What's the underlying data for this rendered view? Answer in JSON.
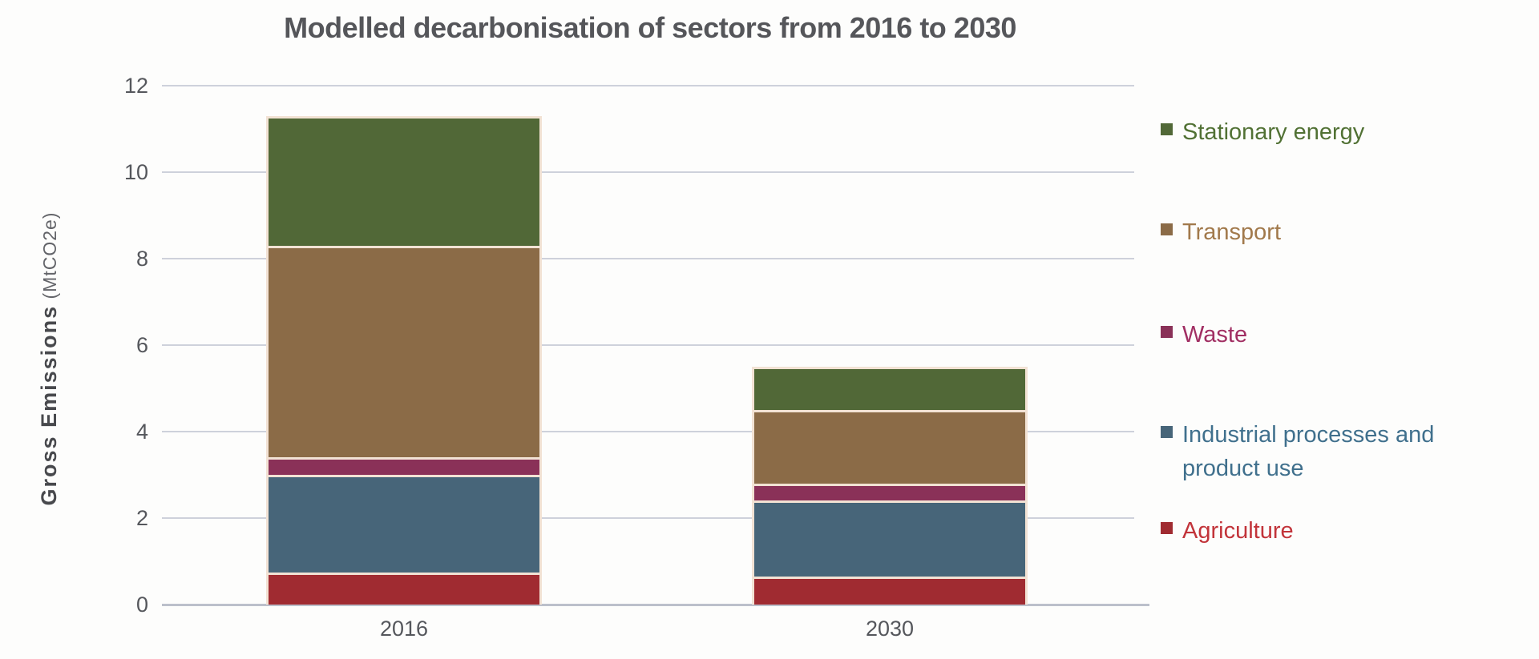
{
  "title": "Modelled decarbonisation of sectors from 2016 to 2030",
  "y_axis": {
    "label_bold": "Gross Emissions",
    "label_unit": " (MtCO2e)",
    "ticks": [
      0,
      2,
      4,
      6,
      8,
      10,
      12
    ]
  },
  "x_axis": {
    "categories": [
      "2016",
      "2030"
    ]
  },
  "legend": {
    "items": [
      {
        "label": "Stationary energy",
        "swatch_color": "#516837",
        "text_color": "#517134"
      },
      {
        "label": "Transport",
        "swatch_color": "#8b6b47",
        "text_color": "#a1794b"
      },
      {
        "label": "Waste",
        "swatch_color": "#8a3158",
        "text_color": "#a12f63"
      },
      {
        "label": "Industrial processes and product use",
        "swatch_color": "#476579",
        "text_color": "#40708d"
      },
      {
        "label": "Agriculture",
        "swatch_color": "#a02b31",
        "text_color": "#c2343a"
      }
    ]
  },
  "colors": {
    "gridline": "#ced1db",
    "axis_line": "#bcc0cb",
    "segment_border": "#f2e2d4",
    "title_text": "#55565a",
    "tick_text": "#55575c"
  },
  "chart_data": {
    "type": "bar",
    "stacked": true,
    "title": "Modelled decarbonisation of sectors from 2016 to 2030",
    "xlabel": "",
    "ylabel": "Gross Emissions (MtCO2e)",
    "ylim": [
      0,
      12
    ],
    "grid": true,
    "legend_position": "right",
    "categories": [
      "2016",
      "2030"
    ],
    "series": [
      {
        "name": "Agriculture",
        "color": "#a02b31",
        "values": [
          0.75,
          0.65
        ]
      },
      {
        "name": "Industrial processes and product use",
        "color": "#476579",
        "values": [
          2.25,
          1.75
        ]
      },
      {
        "name": "Waste",
        "color": "#8a3158",
        "values": [
          0.4,
          0.4
        ]
      },
      {
        "name": "Transport",
        "color": "#8b6b47",
        "values": [
          4.9,
          1.7
        ]
      },
      {
        "name": "Stationary energy",
        "color": "#516837",
        "values": [
          3.0,
          1.0
        ]
      }
    ],
    "totals": [
      11.3,
      5.5
    ]
  }
}
